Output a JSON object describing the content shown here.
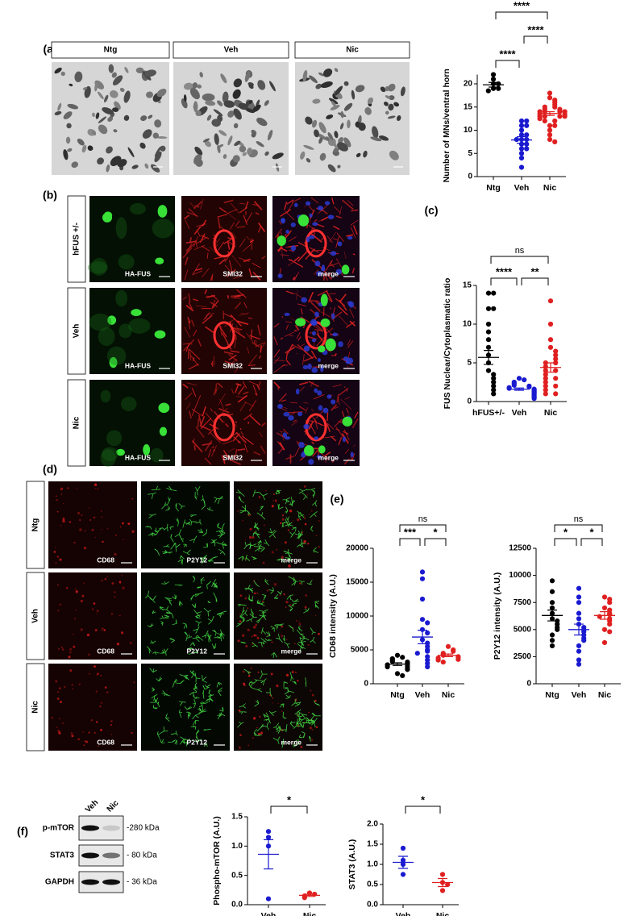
{
  "panel_labels": [
    "(a)",
    "(b)",
    "(c)",
    "(d)",
    "(e)",
    "(f)"
  ],
  "panel_a": {
    "headers": [
      "Ntg",
      "Veh",
      "Nic"
    ]
  },
  "panel_b": {
    "rows": [
      "hFUS +/-",
      "Veh",
      "Nic"
    ],
    "channels": [
      "HA-FUS",
      "SMI32",
      "merge"
    ]
  },
  "panel_d": {
    "rows": [
      "Ntg",
      "Veh",
      "Nic"
    ],
    "channels": [
      "CD68",
      "P2Y12",
      "merge"
    ]
  },
  "panel_f": {
    "lanes": [
      "Veh",
      "Nic"
    ],
    "proteins": [
      "p-mTOR",
      "STAT3",
      "GAPDH"
    ],
    "sizes": [
      "-280 kDa",
      "- 80 kDa",
      "- 36 kDa"
    ]
  },
  "chart_data": [
    {
      "type": "dotplot",
      "ylabel": "Number of MNs/ventral horn",
      "categories": [
        "Ntg",
        "Veh",
        "Nic"
      ],
      "groups": [
        {
          "color": "#000000",
          "points": [
            20,
            21,
            22,
            19,
            20,
            19,
            18.5
          ],
          "mean": 19.8,
          "sem": 0.5
        },
        {
          "color": "#1a1ad0",
          "points": [
            12,
            12,
            11,
            11,
            10,
            9,
            9,
            8,
            8,
            8,
            7,
            7,
            6,
            6,
            5,
            4,
            2
          ],
          "mean": 7.9,
          "sem": 0.7
        },
        {
          "color": "#e02020",
          "points": [
            18,
            17,
            16.5,
            16,
            15.5,
            15,
            15,
            14.5,
            14.5,
            14,
            14,
            14,
            14,
            13.5,
            13.5,
            13,
            13,
            13,
            13,
            12.5,
            12,
            12,
            11,
            11,
            10,
            9,
            8,
            7.5
          ],
          "mean": 13.6,
          "sem": 0.4
        }
      ],
      "ylim": [
        0,
        22
      ],
      "yticks": [
        0,
        5,
        10,
        15,
        20
      ],
      "comparisons": [
        {
          "between": [
            0,
            2
          ],
          "label": "****"
        },
        {
          "between": [
            1,
            2
          ],
          "label": "****"
        },
        {
          "between": [
            0,
            1
          ],
          "label": "****"
        }
      ]
    },
    {
      "type": "dotplot",
      "ylabel": "FUS Nuclear/Cytoplasmatic ratio",
      "categories": [
        "hFUS+/-",
        "Veh",
        "Nic"
      ],
      "groups": [
        {
          "color": "#000000",
          "points": [
            14,
            14,
            12,
            12,
            10,
            9,
            8,
            7,
            6,
            5,
            4,
            3.5,
            3,
            2.5,
            2,
            1.5,
            1
          ],
          "mean": 5.7,
          "sem": 0.9
        },
        {
          "color": "#1a1ad0",
          "points": [
            3,
            2.8,
            2.5,
            2.3,
            2.1,
            2,
            1.9,
            1.8,
            1.7,
            1.6,
            1.5,
            1.4,
            1.3,
            1.2,
            1.1,
            1,
            0.9,
            0.8,
            0.7,
            0.6,
            0.5,
            0.4
          ],
          "mean": 1.6,
          "sem": 0.15
        },
        {
          "color": "#e02020",
          "points": [
            13,
            10,
            8,
            7,
            6.5,
            6,
            5.5,
            5,
            5,
            4.5,
            4,
            4,
            3.5,
            3,
            3,
            2.5,
            2,
            2,
            1.5,
            1,
            1
          ],
          "mean": 4.4,
          "sem": 0.6
        }
      ],
      "ylim": [
        0,
        15
      ],
      "yticks": [
        0,
        5,
        10,
        15
      ],
      "comparisons": [
        {
          "between": [
            0,
            2
          ],
          "label": "ns"
        },
        {
          "between": [
            0,
            1
          ],
          "label": "****"
        },
        {
          "between": [
            1,
            2
          ],
          "label": "**"
        }
      ]
    },
    {
      "type": "dotplot",
      "ylabel": "CD68 intensity (A.U.)",
      "categories": [
        "Ntg",
        "Veh",
        "Nic"
      ],
      "groups": [
        {
          "color": "#000000",
          "points": [
            4200,
            3900,
            3700,
            3500,
            3300,
            3200,
            3000,
            2900,
            2800,
            2600,
            2500,
            2300,
            2100,
            1500,
            1200
          ],
          "mean": 2900,
          "sem": 200
        },
        {
          "color": "#1a1ad0",
          "points": [
            16500,
            15500,
            12500,
            9500,
            9000,
            8000,
            7500,
            6500,
            6000,
            5500,
            5000,
            4800,
            4500,
            4000,
            3500,
            3000,
            2500
          ],
          "mean": 6900,
          "sem": 1000
        },
        {
          "color": "#e02020",
          "points": [
            5500,
            5000,
            4800,
            4500,
            4300,
            4200,
            4000,
            3900,
            3800,
            3600,
            3500,
            3200
          ],
          "mean": 4200,
          "sem": 200
        }
      ],
      "ylim": [
        0,
        20000
      ],
      "yticks": [
        0,
        5000,
        10000,
        15000,
        20000
      ],
      "comparisons": [
        {
          "between": [
            0,
            2
          ],
          "label": "ns"
        },
        {
          "between": [
            0,
            1
          ],
          "label": "***"
        },
        {
          "between": [
            1,
            2
          ],
          "label": "*"
        }
      ]
    },
    {
      "type": "dotplot",
      "ylabel": "P2Y12 intensity (A.U.)",
      "categories": [
        "Ntg",
        "Veh",
        "Nic"
      ],
      "groups": [
        {
          "color": "#000000",
          "points": [
            9500,
            8500,
            7500,
            7000,
            6500,
            6000,
            5800,
            5500,
            5200,
            5000,
            4500,
            4000,
            3500
          ],
          "mean": 6300,
          "sem": 500
        },
        {
          "color": "#1a1ad0",
          "points": [
            8800,
            8000,
            7500,
            6500,
            6000,
            5500,
            5200,
            5000,
            4800,
            4500,
            4200,
            4000,
            3500,
            3000,
            2200,
            1800
          ],
          "mean": 5000,
          "sem": 500
        },
        {
          "color": "#e02020",
          "points": [
            8000,
            7800,
            7500,
            7000,
            6800,
            6500,
            6400,
            6200,
            6000,
            5800,
            5500,
            5000,
            4800,
            3800
          ],
          "mean": 6300,
          "sem": 350
        }
      ],
      "ylim": [
        0,
        12500
      ],
      "yticks": [
        0,
        2500,
        5000,
        7500,
        10000,
        12500
      ],
      "comparisons": [
        {
          "between": [
            0,
            2
          ],
          "label": "ns"
        },
        {
          "between": [
            0,
            1
          ],
          "label": "*"
        },
        {
          "between": [
            1,
            2
          ],
          "label": "*"
        }
      ]
    },
    {
      "type": "dotplot",
      "ylabel": "Phospho-mTOR (A.U.)",
      "categories": [
        "Veh",
        "Nic"
      ],
      "groups": [
        {
          "color": "#1a1ad0",
          "points": [
            1.25,
            1.15,
            1.0,
            0.1
          ],
          "mean": 0.86,
          "sem": 0.25
        },
        {
          "color": "#e02020",
          "points": [
            0.2,
            0.18,
            0.15,
            0.12
          ],
          "mean": 0.16,
          "sem": 0.02
        }
      ],
      "ylim": [
        0,
        1.5
      ],
      "yticks": [
        {
          "value": 0,
          "label": "0.0"
        },
        0.5,
        {
          "value": 1,
          "label": "1.0"
        },
        1.5
      ],
      "comparisons": [
        {
          "between": [
            0,
            1
          ],
          "label": "*"
        }
      ]
    },
    {
      "type": "dotplot",
      "ylabel": "STAT3 (A.U.)",
      "categories": [
        "Veh",
        "Nic"
      ],
      "groups": [
        {
          "color": "#1a1ad0",
          "points": [
            1.4,
            1.1,
            1.0,
            0.75
          ],
          "mean": 1.05,
          "sem": 0.15
        },
        {
          "color": "#e02020",
          "points": [
            0.75,
            0.55,
            0.5,
            0.35
          ],
          "mean": 0.55,
          "sem": 0.1
        }
      ],
      "ylim": [
        0,
        2
      ],
      "yticks": [
        {
          "value": 0,
          "label": "0.0"
        },
        0.5,
        {
          "value": 1,
          "label": "1.0"
        },
        1.5,
        {
          "value": 2,
          "label": "2.0"
        }
      ],
      "comparisons": [
        {
          "between": [
            0,
            1
          ],
          "label": "*"
        }
      ]
    }
  ]
}
